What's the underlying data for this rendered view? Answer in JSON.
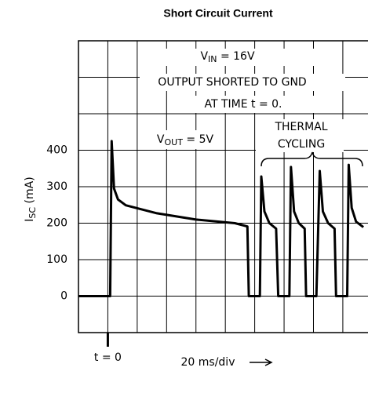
{
  "chart_data": {
    "type": "line",
    "title": "Short Circuit Current",
    "y_label": {
      "main": "I",
      "sub": "SC",
      "rest": " (mA)"
    },
    "x_label": "20 ms/div",
    "annotations": [
      {
        "main": "V",
        "sub": "IN",
        "rest": " = 16V"
      },
      {
        "main": "OUTPUT SHORTED TO GND",
        "sub": "",
        "rest": ""
      },
      {
        "main": "AT TIME t = 0.",
        "sub": "",
        "rest": ""
      },
      {
        "main": "V",
        "sub": "OUT",
        "rest": " = 5V"
      },
      {
        "main": "THERMAL",
        "sub": "",
        "rest": ""
      },
      {
        "main": "CYCLING",
        "sub": "",
        "rest": ""
      }
    ],
    "xlim": [
      -20,
      175
    ],
    "ylim": [
      -100,
      700
    ],
    "yticks": [
      0,
      100,
      200,
      300,
      400
    ],
    "xticks": [
      {
        "value": 0,
        "label": "t = 0"
      }
    ],
    "grid": true,
    "series": [
      {
        "name": "ISC",
        "color": "#000000",
        "x": [
          -20,
          1.6,
          2.6,
          4.2,
          6.9,
          12.2,
          33.4,
          60,
          86.5,
          95,
          96,
          103.5,
          104.5,
          106.6,
          110,
          114.6,
          116,
          123.6,
          124.7,
          126.8,
          130,
          134,
          135,
          142,
          144.3,
          146.4,
          150,
          154.4,
          155.4,
          163,
          164,
          166,
          169,
          174
        ],
        "values": [
          0,
          0,
          425,
          295,
          265,
          249,
          227,
          210,
          200,
          191,
          0,
          0,
          328,
          232,
          200,
          185,
          0,
          0,
          354,
          232,
          200,
          185,
          0,
          0,
          343,
          232,
          200,
          185,
          0,
          0,
          360,
          242,
          204,
          189
        ]
      }
    ]
  }
}
